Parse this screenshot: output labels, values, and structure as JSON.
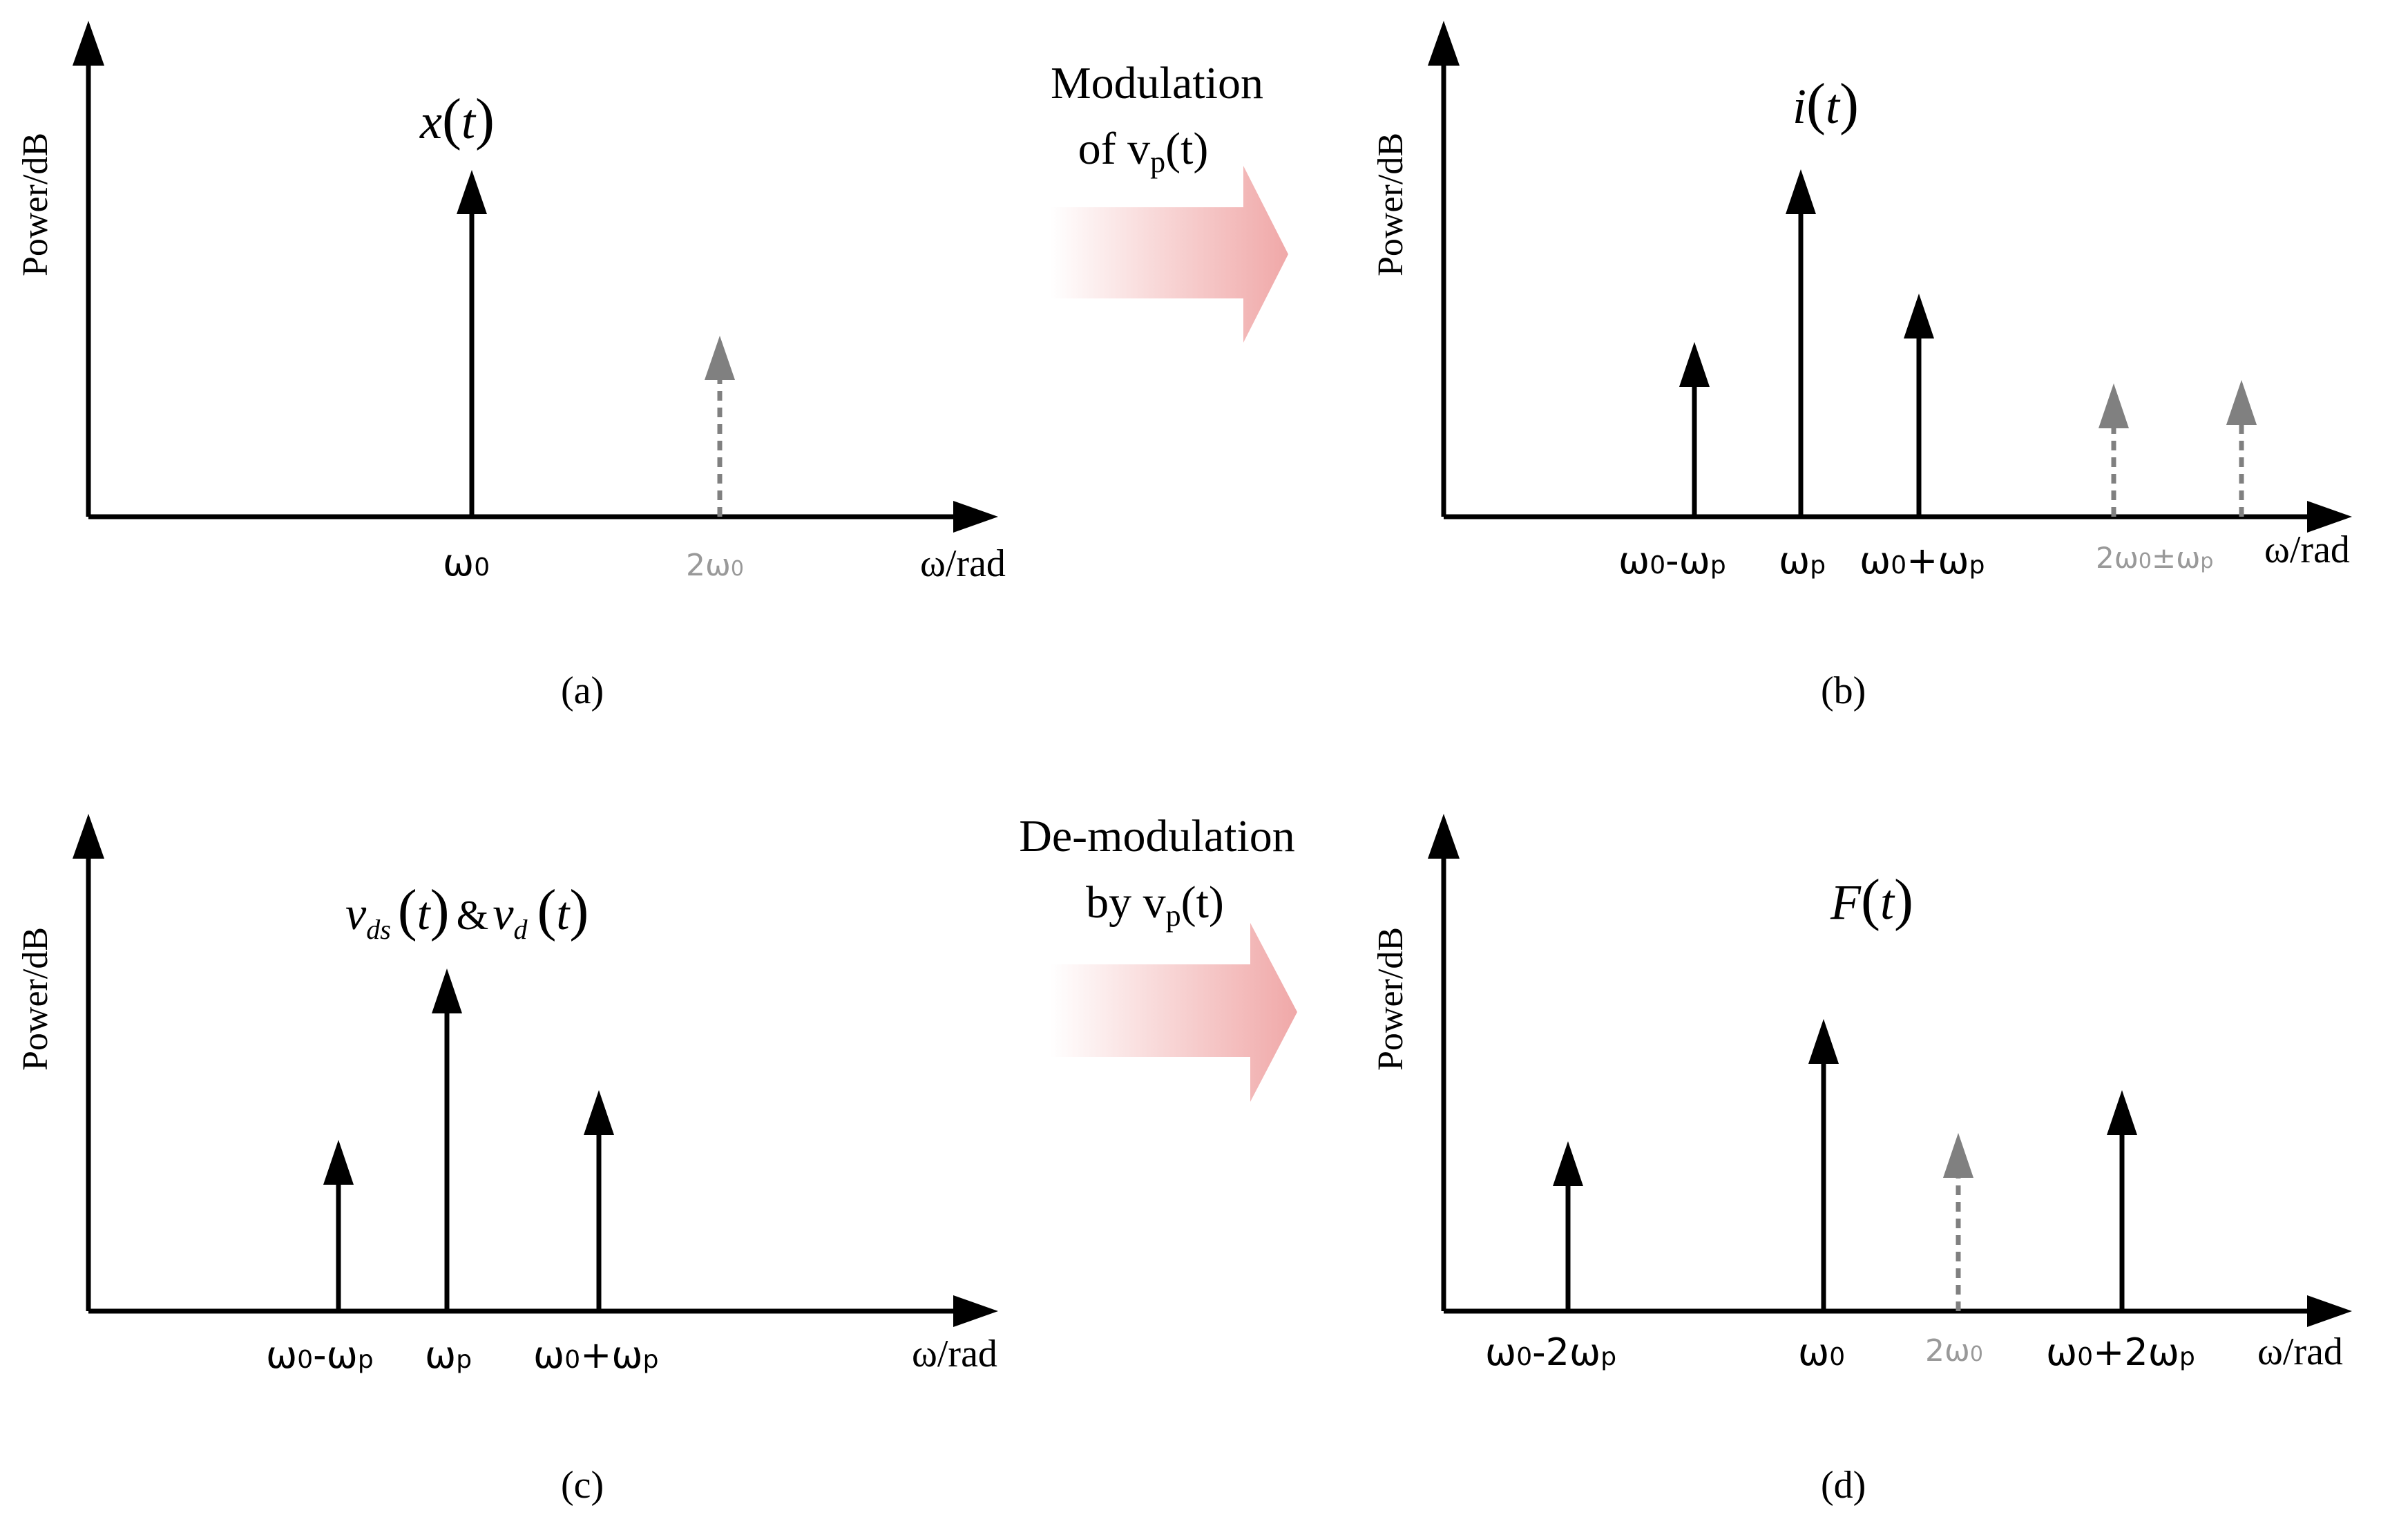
{
  "colors": {
    "axis": "#000000",
    "arrow_main": "#000000",
    "arrow_dashed": "#808080",
    "gray_text": "#999999",
    "transfer_arrow": "#f0a8a8"
  },
  "panels": {
    "a": {
      "ylabel": "Power/dB",
      "xlabel": "ω/rad",
      "signal": {
        "base": "x",
        "paren_open": "(",
        "arg": "t",
        "paren_close": ")"
      },
      "tick_labels": [
        {
          "main": "ω",
          "sub": "0",
          "rest": ""
        },
        {
          "pre": "2ω",
          "sub": "0",
          "rest": ""
        }
      ],
      "caption": "(a)"
    },
    "b": {
      "ylabel": "Power/dB",
      "xlabel": "ω/rad",
      "signal": {
        "base": "i",
        "paren_open": "(",
        "arg": "t",
        "paren_close": ")"
      },
      "tick_labels": [
        {
          "main": "ω",
          "sub": "0",
          "rest": "-ω",
          "sub2": "p"
        },
        {
          "main": "ω",
          "sub": "p"
        },
        {
          "main": "ω",
          "sub": "0",
          "rest": "+ω",
          "sub2": "p"
        },
        {
          "main": "2ω",
          "sub": "0",
          "rest": "±ω",
          "sub2": "p"
        }
      ],
      "caption": "(b)"
    },
    "c": {
      "ylabel": "Power/dB",
      "xlabel": "ω/rad",
      "signal": {
        "v1": "v",
        "sub1": "ds",
        "paren_open": "(",
        "arg": "t",
        "paren_close": ")",
        "amp": "&",
        "v2": "v",
        "sub2": "d"
      },
      "tick_labels": [
        {
          "main": "ω",
          "sub": "0",
          "rest": "-ω",
          "sub2": "p"
        },
        {
          "main": "ω",
          "sub": "p"
        },
        {
          "main": "ω",
          "sub": "0",
          "rest": "+ω",
          "sub2": "p"
        }
      ],
      "caption": "(c)"
    },
    "d": {
      "ylabel": "Power/dB",
      "xlabel": "ω/rad",
      "signal": {
        "base": "F",
        "paren_open": "(",
        "arg": "t",
        "paren_close": ")"
      },
      "tick_labels": [
        {
          "main": "ω",
          "sub": "0",
          "rest": "-2ω",
          "sub2": "p"
        },
        {
          "main": "ω",
          "sub": "0"
        },
        {
          "main": "2ω",
          "sub": "0"
        },
        {
          "main": "ω",
          "sub": "0",
          "rest": "+2ω",
          "sub2": "p"
        }
      ],
      "caption": "(d)"
    }
  },
  "transfers": {
    "modulation": {
      "line1": "Modulation",
      "line2_pre": "of v",
      "line2_sub": "p",
      "line2_post": "(t)"
    },
    "demodulation": {
      "line1": "De-modulation",
      "line2_pre": "by v",
      "line2_sub": "p",
      "line2_post": "(t)"
    }
  }
}
